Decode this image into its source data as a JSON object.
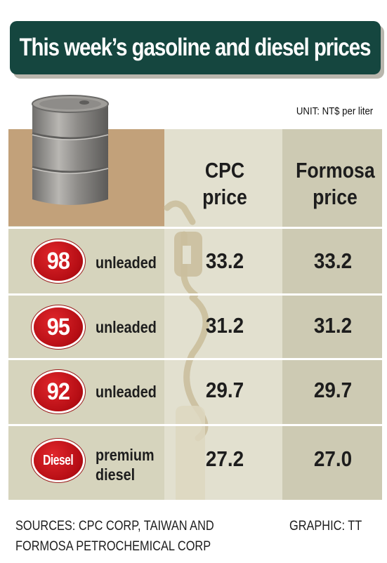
{
  "title": "This week’s gasoline and diesel prices",
  "unit": "UNIT: NT$ per liter",
  "columns": {
    "cpc_line1": "CPC",
    "cpc_line2": "price",
    "formosa_line1": "Formosa",
    "formosa_line2": "price"
  },
  "rows": [
    {
      "badge": "98",
      "label1": "unleaded",
      "label2": "",
      "cpc": "33.2",
      "formosa": "33.2"
    },
    {
      "badge": "95",
      "label1": "unleaded",
      "label2": "",
      "cpc": "31.2",
      "formosa": "31.2"
    },
    {
      "badge": "92",
      "label1": "unleaded",
      "label2": "",
      "cpc": "29.7",
      "formosa": "29.7"
    },
    {
      "badge": "Diesel",
      "label1": "premium",
      "label2": "diesel",
      "cpc": "27.2",
      "formosa": "27.0"
    }
  ],
  "sources_line1": "SOURCES: CPC CORP, TAIWAN AND",
  "sources_line2": "FORMOSA PETROCHEMICAL CORP",
  "credit": "GRAPHIC: TT",
  "icons": [
    "oil-barrel-icon",
    "fuel-pump-nozzle-icon"
  ],
  "colors": {
    "title_bg": "#15463f",
    "badge_red": "#c4121a",
    "tan": "#c2a17a"
  },
  "chart_data": {
    "type": "table",
    "title": "This week’s gasoline and diesel prices",
    "unit": "NT$ per liter",
    "categories": [
      "98 unleaded",
      "95 unleaded",
      "92 unleaded",
      "Diesel premium diesel"
    ],
    "series": [
      {
        "name": "CPC price",
        "values": [
          33.2,
          31.2,
          29.7,
          27.2
        ]
      },
      {
        "name": "Formosa price",
        "values": [
          33.2,
          31.2,
          29.7,
          27.0
        ]
      }
    ]
  }
}
